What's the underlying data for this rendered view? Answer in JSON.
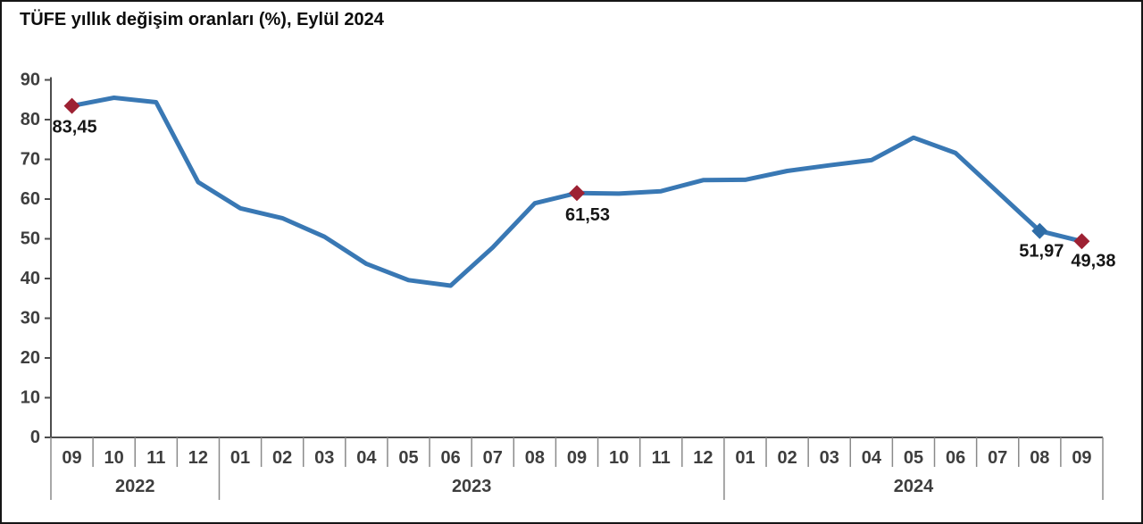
{
  "page": {
    "title": "TÜFE yıllık değişim oranları (%), Eylül 2024"
  },
  "chart_data": {
    "type": "line",
    "title": "TÜFE yıllık değişim oranları (%), Eylül 2024",
    "xlabel": "",
    "ylabel": "",
    "ylim": [
      0,
      90
    ],
    "ytick_step": 10,
    "grid": false,
    "legend": null,
    "line_color": "#3978b4",
    "axis_color": "#4d4d4d",
    "tick_color": "#8a8a8a",
    "x_groups": [
      {
        "year": "2022",
        "months": [
          "09",
          "10",
          "11",
          "12"
        ]
      },
      {
        "year": "2023",
        "months": [
          "01",
          "02",
          "03",
          "04",
          "05",
          "06",
          "07",
          "08",
          "09",
          "10",
          "11",
          "12"
        ]
      },
      {
        "year": "2024",
        "months": [
          "01",
          "02",
          "03",
          "04",
          "05",
          "06",
          "07",
          "08",
          "09"
        ]
      }
    ],
    "values": [
      83.45,
      85.51,
      84.39,
      64.27,
      57.68,
      55.18,
      50.51,
      43.68,
      39.59,
      38.21,
      47.83,
      58.94,
      61.53,
      61.36,
      61.98,
      64.77,
      64.86,
      67.07,
      68.5,
      69.8,
      75.45,
      71.6,
      61.78,
      51.97,
      49.38
    ],
    "annotations": [
      {
        "index": 0,
        "label": "83,45",
        "value": 83.45,
        "marker_color": "#9d2133"
      },
      {
        "index": 12,
        "label": "61,53",
        "value": 61.53,
        "marker_color": "#9d2133"
      },
      {
        "index": 23,
        "label": "51,97",
        "value": 51.97,
        "marker_color": "#2e6ca6"
      },
      {
        "index": 24,
        "label": "49,38",
        "value": 49.38,
        "marker_color": "#9d2133"
      }
    ]
  }
}
